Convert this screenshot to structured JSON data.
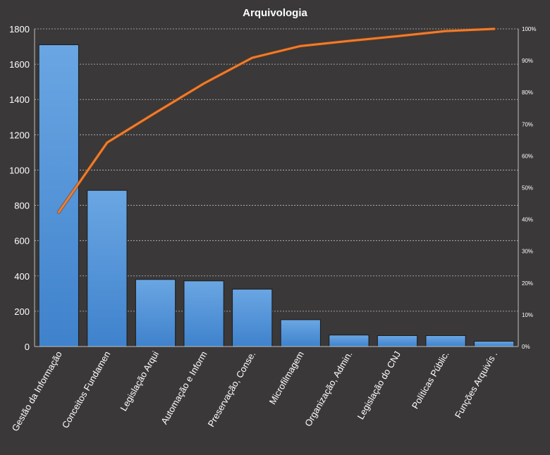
{
  "chart_data": {
    "type": "bar",
    "title": "Arquivologia",
    "categories": [
      "Gestão da Informação",
      "Conceitos Fundamen",
      "Legislação Arqui",
      "Automação e Inform",
      "Preservação, Conse.",
      "Microfilmagem",
      "Organização, Admin.",
      "Legislação do CNJ",
      "Políticas Públic.",
      "Funções Arquivís ."
    ],
    "series": [
      {
        "type": "bar",
        "values": [
          1710,
          885,
          380,
          372,
          325,
          152,
          65,
          62,
          62,
          30
        ]
      },
      {
        "type": "line",
        "axis": "right",
        "values": [
          42.3,
          64.2,
          73.6,
          82.8,
          90.9,
          94.6,
          96.2,
          97.7,
          99.3,
          100
        ]
      }
    ],
    "ylim": [
      0,
      1800
    ],
    "yticks": [
      "0",
      "200",
      "400",
      "600",
      "800",
      "1000",
      "1200",
      "1400",
      "1600",
      "1800"
    ],
    "y2lim": [
      0,
      100
    ],
    "y2ticks": [
      "0%",
      "10%",
      "20%",
      "30%",
      "40%",
      "50%",
      "60%",
      "70%",
      "80%",
      "90%",
      "100%"
    ],
    "grid": true,
    "colors": {
      "background": "#3a3838",
      "bar_light": "#6aa6e3",
      "bar_dark": "#3f82cc",
      "line": "#ef7d2e",
      "text": "#ffffff",
      "grid": "#bfbfbf"
    }
  }
}
